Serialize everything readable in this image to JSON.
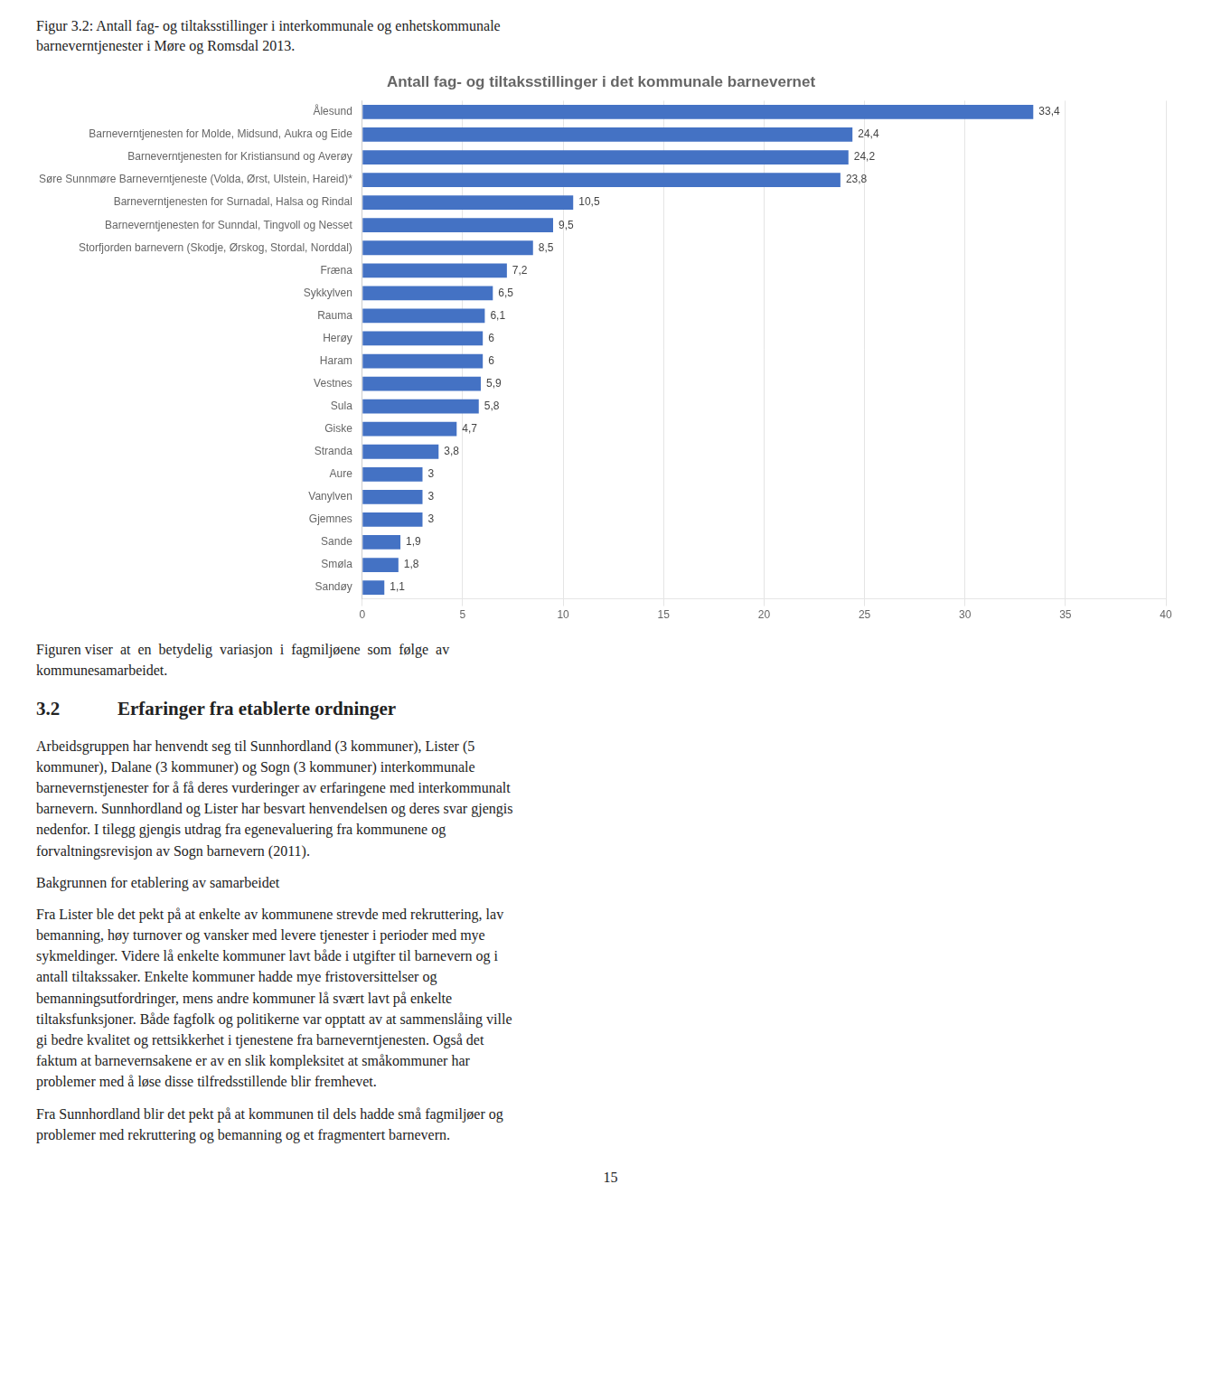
{
  "chart_data": {
    "type": "bar",
    "orientation": "horizontal",
    "title": "Antall fag- og tiltaksstillinger i det kommunale barnevernet",
    "caption": [
      "Figur 3.2: Antall fag- og tiltaksstillinger i interkommunale og enhetskommunale",
      "barneverntjenester i Møre og Romsdal 2013."
    ],
    "categories": [
      "Ålesund",
      "Barneverntjenesten for Molde, Midsund, Aukra og Eide",
      "Barneverntjenesten for Kristiansund og Averøy",
      "Søre Sunnmøre Barneverntjeneste (Volda, Ørst, Ulstein, Hareid)*",
      "Barneverntjenesten for Surnadal, Halsa og Rindal",
      "Barneverntjenesten for Sunndal, Tingvoll og Nesset",
      "Storfjorden barnevern (Skodje, Ørskog, Stordal, Norddal)",
      "Fræna",
      "Sykkylven",
      "Rauma",
      "Herøy",
      "Haram",
      "Vestnes",
      "Sula",
      "Giske",
      "Stranda",
      "Aure",
      "Vanylven",
      "Gjemnes",
      "Sande",
      "Smøla",
      "Sandøy"
    ],
    "values": [
      33.4,
      24.4,
      24.2,
      23.8,
      10.5,
      9.5,
      8.5,
      7.2,
      6.5,
      6.1,
      6,
      6,
      5.9,
      5.8,
      4.7,
      3.8,
      3,
      3,
      3,
      1.9,
      1.8,
      1.1
    ],
    "value_labels": [
      "33,4",
      "24,4",
      "24,2",
      "23,8",
      "10,5",
      "9,5",
      "8,5",
      "7,2",
      "6,5",
      "6,1",
      "6",
      "6",
      "5,9",
      "5,8",
      "4,7",
      "3,8",
      "3",
      "3",
      "3",
      "1,9",
      "1,8",
      "1,1"
    ],
    "data_labels": true,
    "color": "#4472c4",
    "xlim": [
      0,
      40
    ],
    "xticks": [
      0,
      5,
      10,
      15,
      20,
      25,
      30,
      35,
      40
    ],
    "grid": true,
    "body_intro": "Figuren viser  at  en  betydelig  variasjon  i  fagmiljøene  som  følge  av\nkommunesamarbeidet.",
    "section_number": "3.2",
    "section_title": "Erfaringer fra etablerte ordninger",
    "body": [
      "Arbeidsgruppen har henvendt seg til Sunnhordland (3 kommuner), Lister (5\nkommuner), Dalane (3 kommuner) og Sogn (3 kommuner) interkommunale\nbarnevernstjenester for å få deres vurderinger av erfaringene med interkommunalt\nbarnevern. Sunnhordland og Lister har besvart henvendelsen og deres svar gjengis\nnedenfor. I tilegg gjengis utdrag fra egenevaluering fra kommunene og\nforvaltningsrevisjon av Sogn barnevern (2011).",
      "Bakgrunnen for etablering av samarbeidet",
      "Fra Lister ble det pekt på at enkelte av kommunene strevde med rekruttering, lav\nbemanning, høy turnover og vansker med levere tjenester i perioder med mye\nsykmeldinger. Videre lå enkelte kommuner lavt både i utgifter til barnevern og i\nantall tiltakssaker. Enkelte kommuner hadde mye fristoversittelser og\nbemanningsutfordringer, mens andre kommuner lå svært lavt på enkelte\ntiltaksfunksjoner. Både fagfolk og politikerne var opptatt av at sammenslåing ville\ngi bedre kvalitet og rettsikkerhet i tjenestene fra barneverntjenesten. Også det\nfaktum at barnevernsakene er av en slik kompleksitet at småkommuner har\nproblemer med å løse disse tilfredsstillende blir fremhevet.",
      "Fra Sunnhordland blir det pekt på at kommunen til dels hadde små fagmiljøer og\nproblemer med rekruttering og bemanning og et fragmentert barnevern."
    ],
    "page_number": "15"
  }
}
